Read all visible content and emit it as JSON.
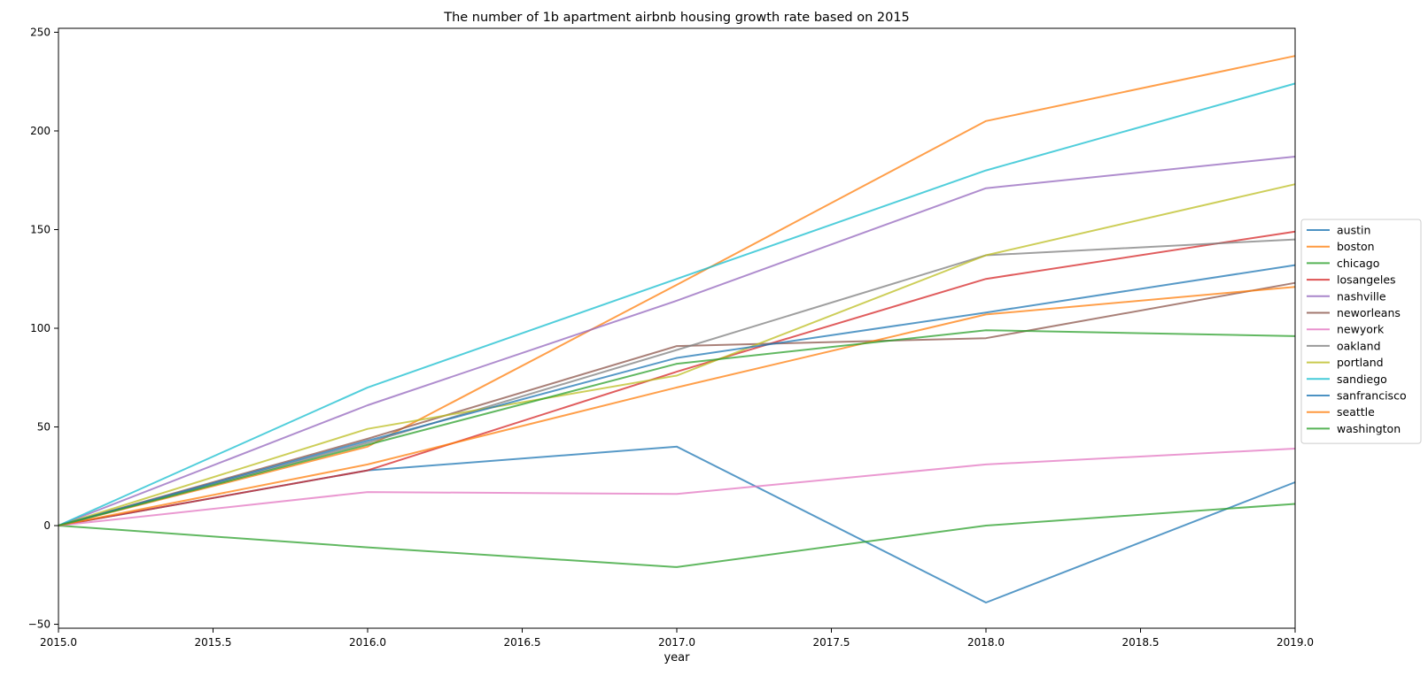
{
  "chart_data": {
    "type": "line",
    "title": "The number of 1b apartment airbnb housing growth rate based on 2015",
    "xlabel": "year",
    "ylabel": "",
    "x": [
      2015,
      2016,
      2017,
      2018,
      2019
    ],
    "xlim": [
      2015.0,
      2019.0
    ],
    "ylim": [
      -52,
      252
    ],
    "xticks": [
      "2015.0",
      "2015.5",
      "2016.0",
      "2016.5",
      "2017.0",
      "2017.5",
      "2018.0",
      "2018.5",
      "2019.0"
    ],
    "xtick_values": [
      2015.0,
      2015.5,
      2016.0,
      2016.5,
      2017.0,
      2017.5,
      2018.0,
      2018.5,
      2019.0
    ],
    "yticks": [
      "−50",
      "0",
      "50",
      "100",
      "150",
      "200",
      "250"
    ],
    "ytick_values": [
      -50,
      0,
      50,
      100,
      150,
      200,
      250
    ],
    "grid": false,
    "legend_position": "center-right",
    "series": [
      {
        "name": "austin",
        "color": "#1f77b4",
        "values": [
          0,
          28,
          40,
          -39,
          22
        ]
      },
      {
        "name": "boston",
        "color": "#ff7f0e",
        "values": [
          0,
          40,
          122,
          205,
          238
        ]
      },
      {
        "name": "chicago",
        "color": "#2ca02c",
        "values": [
          0,
          -11,
          -21,
          0,
          11
        ]
      },
      {
        "name": "losangeles",
        "color": "#d62728",
        "values": [
          0,
          28,
          78,
          125,
          149
        ]
      },
      {
        "name": "nashville",
        "color": "#9467bd",
        "values": [
          0,
          61,
          114,
          171,
          187
        ]
      },
      {
        "name": "neworleans",
        "color": "#8c564b",
        "values": [
          0,
          44,
          91,
          95,
          123
        ]
      },
      {
        "name": "newyork",
        "color": "#e377c2",
        "values": [
          0,
          17,
          16,
          31,
          39
        ]
      },
      {
        "name": "oakland",
        "color": "#7f7f7f",
        "values": [
          0,
          42,
          89,
          137,
          145
        ]
      },
      {
        "name": "portland",
        "color": "#bcbd22",
        "values": [
          0,
          49,
          76,
          137,
          173
        ]
      },
      {
        "name": "sandiego",
        "color": "#17becf",
        "values": [
          0,
          70,
          125,
          180,
          224
        ]
      },
      {
        "name": "sanfrancisco",
        "color": "#1f77b4",
        "values": [
          0,
          43,
          85,
          108,
          132
        ]
      },
      {
        "name": "seattle",
        "color": "#ff7f0e",
        "values": [
          0,
          31,
          70,
          107,
          121
        ]
      },
      {
        "name": "washington",
        "color": "#2ca02c",
        "values": [
          0,
          41,
          82,
          99,
          96
        ]
      }
    ]
  }
}
